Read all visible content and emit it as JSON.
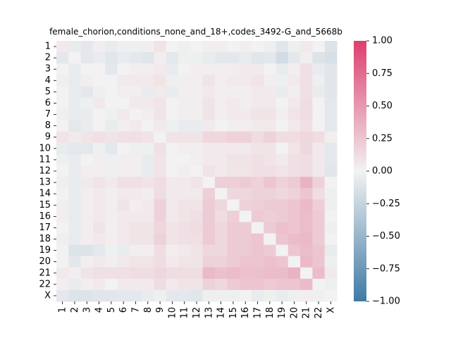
{
  "chart_data": {
    "type": "heatmap",
    "title": "female_chorion,conditions_none_and_18+,codes_3492-G_and_5668b",
    "xlabel": "",
    "ylabel": "",
    "labels": [
      "1",
      "2",
      "3",
      "4",
      "5",
      "6",
      "7",
      "8",
      "9",
      "10",
      "11",
      "12",
      "13",
      "14",
      "15",
      "16",
      "17",
      "18",
      "19",
      "20",
      "21",
      "22",
      "X"
    ],
    "colorbar": {
      "min": -1.0,
      "max": 1.0,
      "ticks": [
        -1.0,
        -0.75,
        -0.5,
        -0.25,
        0.0,
        0.25,
        0.5,
        0.75,
        1.0
      ],
      "tick_labels": [
        "−1.00",
        "−0.75",
        "−0.50",
        "−0.25",
        "0.00",
        "0.25",
        "0.50",
        "0.75",
        "1.00"
      ],
      "low_color": "#3f7aa5",
      "mid_color": "#f2f2f2",
      "high_color": "#dc3f6d"
    },
    "matrix": [
      [
        0.05,
        -0.05,
        -0.08,
        0.02,
        -0.05,
        -0.02,
        -0.02,
        0.02,
        0.08,
        0.0,
        -0.02,
        0.0,
        0.02,
        0.02,
        0.0,
        0.02,
        0.0,
        -0.02,
        -0.1,
        -0.02,
        0.05,
        0.0,
        -0.12
      ],
      [
        -0.08,
        0.0,
        -0.08,
        -0.05,
        -0.1,
        -0.05,
        -0.08,
        -0.1,
        0.02,
        -0.08,
        -0.02,
        -0.02,
        -0.05,
        -0.08,
        -0.08,
        -0.05,
        -0.1,
        -0.08,
        -0.18,
        -0.08,
        0.02,
        -0.12,
        -0.15
      ],
      [
        0.0,
        -0.05,
        0.0,
        0.0,
        -0.08,
        0.0,
        0.02,
        0.02,
        0.05,
        -0.05,
        0.0,
        0.02,
        0.02,
        0.02,
        0.02,
        0.05,
        0.05,
        0.0,
        -0.05,
        0.02,
        0.1,
        -0.05,
        -0.1
      ],
      [
        0.02,
        -0.05,
        0.02,
        0.0,
        0.0,
        0.05,
        0.05,
        0.05,
        0.08,
        -0.02,
        0.02,
        0.02,
        0.08,
        0.02,
        0.05,
        0.05,
        0.08,
        0.02,
        -0.02,
        0.05,
        0.1,
        -0.02,
        -0.1
      ],
      [
        0.0,
        -0.05,
        -0.08,
        -0.02,
        0.0,
        0.02,
        0.02,
        -0.05,
        0.05,
        -0.05,
        0.02,
        0.02,
        0.05,
        0.02,
        0.02,
        0.02,
        0.05,
        0.05,
        -0.05,
        0.02,
        0.1,
        -0.05,
        -0.1
      ],
      [
        0.0,
        -0.05,
        -0.02,
        0.05,
        0.0,
        0.0,
        0.05,
        0.05,
        0.08,
        0.0,
        0.02,
        0.02,
        0.08,
        0.02,
        0.05,
        0.02,
        0.05,
        0.05,
        0.0,
        0.05,
        0.12,
        0.0,
        -0.08
      ],
      [
        0.02,
        -0.05,
        -0.05,
        0.0,
        -0.02,
        0.05,
        0.0,
        0.02,
        0.08,
        0.0,
        0.02,
        0.02,
        0.08,
        0.02,
        0.05,
        0.05,
        0.08,
        0.08,
        0.02,
        0.08,
        0.12,
        0.0,
        -0.08
      ],
      [
        0.0,
        -0.08,
        -0.05,
        0.0,
        -0.05,
        0.02,
        0.05,
        0.0,
        0.05,
        -0.02,
        -0.05,
        -0.05,
        0.05,
        0.0,
        0.02,
        0.02,
        0.05,
        0.05,
        0.0,
        0.05,
        0.1,
        0.0,
        -0.08
      ],
      [
        0.08,
        0.05,
        0.08,
        0.1,
        0.08,
        0.1,
        0.1,
        0.08,
        0.0,
        0.08,
        0.08,
        0.08,
        0.15,
        0.15,
        0.18,
        0.18,
        0.12,
        0.18,
        0.12,
        0.12,
        0.15,
        0.12,
        0.02
      ],
      [
        -0.05,
        -0.08,
        -0.08,
        -0.02,
        -0.08,
        0.0,
        -0.02,
        -0.02,
        0.1,
        0.0,
        0.02,
        0.02,
        0.05,
        0.05,
        0.05,
        0.05,
        0.08,
        0.08,
        0.0,
        0.08,
        0.15,
        0.05,
        -0.08
      ],
      [
        -0.02,
        -0.05,
        0.0,
        0.02,
        -0.02,
        0.02,
        0.02,
        -0.05,
        0.08,
        0.0,
        0.0,
        0.02,
        0.05,
        0.05,
        0.08,
        0.08,
        0.1,
        0.08,
        0.05,
        0.1,
        0.12,
        0.05,
        -0.08
      ],
      [
        0.0,
        -0.05,
        0.02,
        0.02,
        -0.02,
        0.02,
        0.02,
        -0.05,
        0.08,
        0.0,
        0.02,
        0.0,
        0.08,
        0.05,
        0.08,
        0.08,
        0.1,
        0.1,
        0.08,
        0.1,
        0.12,
        0.05,
        -0.1
      ],
      [
        0.02,
        -0.05,
        0.05,
        0.08,
        0.05,
        0.1,
        0.1,
        0.08,
        0.12,
        0.05,
        0.05,
        0.08,
        0.0,
        0.2,
        0.2,
        0.22,
        0.18,
        0.25,
        0.18,
        0.22,
        0.35,
        0.18,
        0.0
      ],
      [
        0.0,
        -0.05,
        0.02,
        0.05,
        0.02,
        0.05,
        0.05,
        0.02,
        0.12,
        0.05,
        0.05,
        0.05,
        0.2,
        0.0,
        0.15,
        0.15,
        0.18,
        0.18,
        0.15,
        0.18,
        0.25,
        0.12,
        -0.02
      ],
      [
        0.02,
        -0.05,
        0.02,
        0.05,
        0.02,
        0.08,
        0.02,
        0.05,
        0.18,
        0.05,
        0.08,
        0.08,
        0.22,
        0.15,
        0.0,
        0.18,
        0.2,
        0.22,
        0.22,
        0.25,
        0.32,
        0.2,
        -0.02
      ],
      [
        0.02,
        -0.05,
        0.02,
        0.05,
        0.02,
        0.05,
        0.05,
        0.05,
        0.18,
        0.05,
        0.08,
        0.1,
        0.22,
        0.12,
        0.2,
        0.0,
        0.22,
        0.2,
        0.22,
        0.25,
        0.3,
        0.22,
        0.0
      ],
      [
        0.0,
        -0.05,
        0.02,
        0.08,
        0.02,
        0.05,
        0.08,
        0.08,
        0.15,
        0.08,
        0.1,
        0.12,
        0.22,
        0.15,
        0.22,
        0.22,
        0.0,
        0.22,
        0.28,
        0.25,
        0.3,
        0.22,
        -0.02
      ],
      [
        0.02,
        -0.05,
        0.02,
        0.05,
        0.02,
        0.05,
        0.08,
        0.08,
        0.18,
        0.08,
        0.1,
        0.1,
        0.22,
        0.15,
        0.22,
        0.22,
        0.25,
        0.0,
        0.25,
        0.3,
        0.32,
        0.22,
        0.0
      ],
      [
        0.0,
        -0.12,
        -0.12,
        -0.08,
        -0.02,
        -0.05,
        0.02,
        0.02,
        0.12,
        0.02,
        0.05,
        0.08,
        0.15,
        0.15,
        0.22,
        0.22,
        0.25,
        0.22,
        0.0,
        0.25,
        0.3,
        0.25,
        -0.05
      ],
      [
        0.0,
        -0.08,
        0.02,
        0.05,
        0.02,
        0.05,
        0.08,
        0.08,
        0.12,
        0.05,
        0.08,
        0.08,
        0.18,
        0.18,
        0.22,
        0.25,
        0.25,
        0.28,
        0.25,
        0.0,
        0.32,
        0.25,
        -0.02
      ],
      [
        0.05,
        0.02,
        0.08,
        0.1,
        0.1,
        0.1,
        0.12,
        0.12,
        0.15,
        0.12,
        0.12,
        0.12,
        0.32,
        0.28,
        0.3,
        0.28,
        0.28,
        0.3,
        0.3,
        0.35,
        0.0,
        0.3,
        0.05
      ],
      [
        0.02,
        -0.05,
        0.02,
        0.05,
        0.0,
        0.05,
        0.05,
        0.05,
        0.12,
        0.05,
        0.08,
        0.08,
        0.18,
        0.15,
        0.22,
        0.25,
        0.25,
        0.22,
        0.25,
        0.25,
        0.3,
        0.0,
        -0.02
      ],
      [
        -0.08,
        -0.12,
        -0.12,
        -0.1,
        -0.1,
        -0.08,
        -0.08,
        -0.05,
        -0.02,
        -0.08,
        -0.08,
        -0.1,
        -0.02,
        -0.02,
        -0.02,
        0.0,
        -0.05,
        -0.02,
        -0.05,
        -0.02,
        0.02,
        -0.02,
        0.0
      ]
    ]
  }
}
